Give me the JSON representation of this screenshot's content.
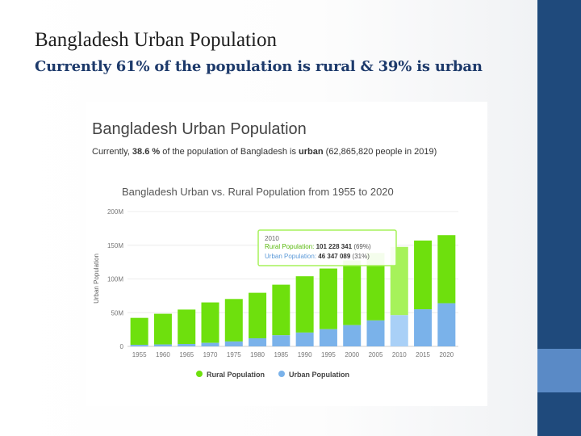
{
  "slide": {
    "title": "Bangladesh Urban Population",
    "subtitle": "Currently 61% of the population is rural & 39% is urban"
  },
  "colors": {
    "rural": "#6ee00d",
    "urban": "#7ab2ea",
    "rural_highlight": "#a6f25a",
    "urban_highlight": "#a9d0f7",
    "side_bar": "#1f4a7c",
    "side_accent": "#5a8ac6"
  },
  "card": {
    "heading": "Bangladesh Urban Population",
    "summary_prefix": "Currently, ",
    "summary_pct": "38.6 %",
    "summary_middle": " of the population of Bangladesh is ",
    "summary_urban": "urban",
    "summary_suffix": " (62,865,820 people in 2019)"
  },
  "chart_data": {
    "type": "bar",
    "stacked": true,
    "title": "Bangladesh Urban vs. Rural Population from 1955 to 2020",
    "ylabel": "Urban Population",
    "xlabel": "",
    "ylim": [
      0,
      200000000
    ],
    "y_ticks": [
      0,
      50000000,
      100000000,
      150000000,
      200000000
    ],
    "y_tick_labels": [
      "0",
      "50M",
      "100M",
      "150M",
      "200M"
    ],
    "grid": true,
    "legend_position": "bottom",
    "categories": [
      "1955",
      "1960",
      "1965",
      "1970",
      "1975",
      "1980",
      "1985",
      "1990",
      "1995",
      "2000",
      "2005",
      "2010",
      "2015",
      "2020"
    ],
    "series": [
      {
        "name": "Urban Population",
        "values": [
          2300000,
          2900000,
          3600000,
          5200000,
          7300000,
          12000000,
          16500000,
          20500000,
          25500000,
          31500000,
          38500000,
          46347089,
          55000000,
          64000000
        ]
      },
      {
        "name": "Rural Population",
        "values": [
          40000000,
          45500000,
          51000000,
          60000000,
          63000000,
          67500000,
          75000000,
          83500000,
          90000000,
          96000000,
          100000000,
          101228341,
          102000000,
          101000000
        ]
      }
    ],
    "highlight_index": 11,
    "tooltip": {
      "year": "2010",
      "rural_label": "Rural Population: ",
      "rural_value": "101 228 341",
      "rural_pct": " (69%)",
      "urban_label": "Urban Population: ",
      "urban_value": "46 347 089",
      "urban_pct": " (31%)"
    }
  }
}
